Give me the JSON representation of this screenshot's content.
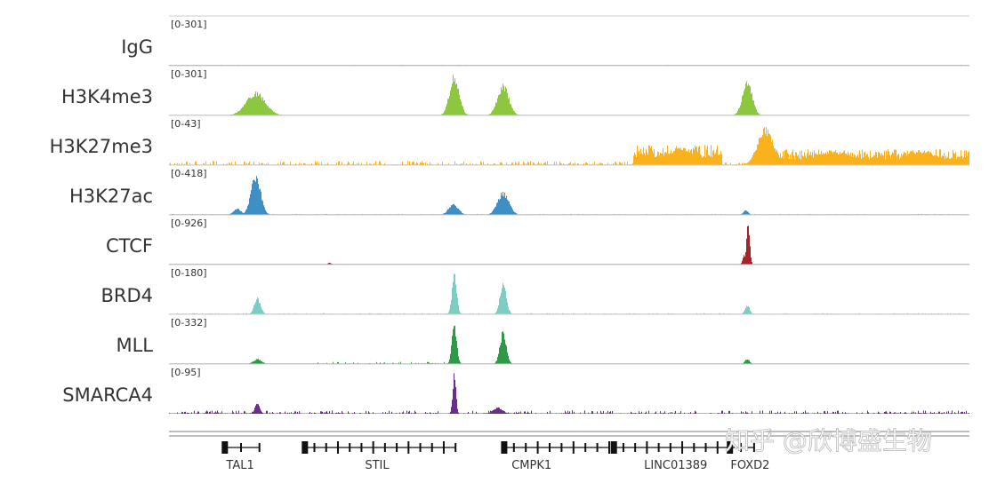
{
  "chart_data": {
    "type": "area",
    "title": "",
    "x_unit": "fraction of displayed locus",
    "tracks": [
      {
        "name": "IgG",
        "range": "[0-301]",
        "max": 301,
        "color": "#444444",
        "noise": 4,
        "noise_span": [
          0,
          1
        ],
        "peaks": []
      },
      {
        "name": "H3K4me3",
        "range": "[0-301]",
        "max": 301,
        "color": "#8dc63f",
        "noise": 1,
        "noise_span": [
          0,
          1
        ],
        "peaks": [
          [
            0.108,
            165,
            0.012
          ],
          [
            0.356,
            290,
            0.006
          ],
          [
            0.417,
            220,
            0.007
          ],
          [
            0.722,
            250,
            0.006
          ]
        ]
      },
      {
        "name": "H3K27me3",
        "range": "[0-43]",
        "max": 43,
        "color": "#f9b21c",
        "noise": 4,
        "noise_span": [
          0,
          1
        ],
        "peaks": [],
        "domains": [
          [
            0.58,
            0.69,
            14
          ],
          [
            0.73,
            1.0,
            11
          ]
        ],
        "extra_peaks": [
          [
            0.745,
            38,
            0.01
          ],
          [
            0.64,
            18,
            0.02
          ],
          [
            0.83,
            14,
            0.03
          ],
          [
            0.94,
            15,
            0.02
          ]
        ]
      },
      {
        "name": "H3K27ac",
        "range": "[0-418]",
        "max": 418,
        "color": "#3d8fc6",
        "noise": 8,
        "noise_span": [
          0,
          1
        ],
        "peaks": [
          [
            0.108,
            400,
            0.006
          ],
          [
            0.085,
            60,
            0.005
          ],
          [
            0.355,
            110,
            0.006
          ],
          [
            0.417,
            230,
            0.007
          ],
          [
            0.72,
            50,
            0.003
          ]
        ]
      },
      {
        "name": "CTCF",
        "range": "[0-926]",
        "max": 926,
        "color": "#a2252a",
        "noise": 2,
        "noise_span": [
          0,
          1
        ],
        "peaks": [
          [
            0.723,
            880,
            0.002
          ],
          [
            0.718,
            200,
            0.002
          ],
          [
            0.2,
            50,
            0.002
          ]
        ]
      },
      {
        "name": "BRD4",
        "range": "[0-180]",
        "max": 180,
        "color": "#7ecdc3",
        "noise": 5,
        "noise_span": [
          0,
          1
        ],
        "peaks": [
          [
            0.356,
            170,
            0.003
          ],
          [
            0.417,
            130,
            0.004
          ],
          [
            0.11,
            70,
            0.004
          ],
          [
            0.722,
            40,
            0.003
          ]
        ]
      },
      {
        "name": "MLL",
        "range": "[0-332]",
        "max": 332,
        "color": "#2e9a47",
        "noise": 16,
        "noise_span": [
          0.17,
          0.35
        ],
        "peaks": [
          [
            0.356,
            320,
            0.003
          ],
          [
            0.417,
            260,
            0.004
          ],
          [
            0.11,
            40,
            0.005
          ],
          [
            0.722,
            40,
            0.003
          ]
        ]
      },
      {
        "name": "SMARCA4",
        "range": "[0-95]",
        "max": 95,
        "color": "#6a2c91",
        "noise": 7,
        "noise_span": [
          0,
          1
        ],
        "peaks": [
          [
            0.356,
            90,
            0.002
          ],
          [
            0.11,
            25,
            0.003
          ],
          [
            0.41,
            14,
            0.006
          ]
        ]
      }
    ],
    "genes": [
      {
        "name": "TAL1",
        "start": 0.067,
        "end": 0.113,
        "label_at": 0.089
      },
      {
        "name": "STIL",
        "start": 0.167,
        "end": 0.358,
        "label_at": 0.26
      },
      {
        "name": "CMPK1",
        "start": 0.416,
        "end": 0.55,
        "label_at": 0.453
      },
      {
        "name": "LINC01389",
        "start": 0.553,
        "end": 0.7,
        "label_at": 0.633
      },
      {
        "name": "FOXD2",
        "start": 0.698,
        "end": 0.731,
        "label_at": 0.726
      }
    ]
  },
  "watermark": "知乎 @欣博盛生物"
}
